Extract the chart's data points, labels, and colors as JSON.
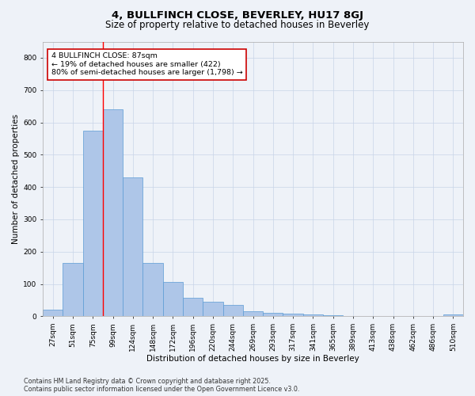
{
  "title": "4, BULLFINCH CLOSE, BEVERLEY, HU17 8GJ",
  "subtitle": "Size of property relative to detached houses in Beverley",
  "xlabel": "Distribution of detached houses by size in Beverley",
  "ylabel": "Number of detached properties",
  "categories": [
    "27sqm",
    "51sqm",
    "75sqm",
    "99sqm",
    "124sqm",
    "148sqm",
    "172sqm",
    "196sqm",
    "220sqm",
    "244sqm",
    "269sqm",
    "293sqm",
    "317sqm",
    "341sqm",
    "365sqm",
    "389sqm",
    "413sqm",
    "438sqm",
    "462sqm",
    "486sqm",
    "510sqm"
  ],
  "values": [
    20,
    165,
    575,
    640,
    430,
    165,
    105,
    58,
    45,
    35,
    15,
    10,
    8,
    5,
    3,
    2,
    1,
    1,
    0,
    0,
    5
  ],
  "bar_color": "#aec6e8",
  "bar_edge_color": "#5b9bd5",
  "grid_color": "#c8d4e8",
  "background_color": "#eef2f8",
  "red_line_x": 2.5,
  "annotation_text": "4 BULLFINCH CLOSE: 87sqm\n← 19% of detached houses are smaller (422)\n80% of semi-detached houses are larger (1,798) →",
  "annotation_box_color": "#ffffff",
  "annotation_box_edge": "#cc0000",
  "ylim": [
    0,
    850
  ],
  "yticks": [
    0,
    100,
    200,
    300,
    400,
    500,
    600,
    700,
    800
  ],
  "footer": "Contains HM Land Registry data © Crown copyright and database right 2025.\nContains public sector information licensed under the Open Government Licence v3.0.",
  "title_fontsize": 9.5,
  "subtitle_fontsize": 8.5,
  "axis_label_fontsize": 7.5,
  "tick_fontsize": 6.5,
  "annotation_fontsize": 6.8,
  "footer_fontsize": 5.8
}
